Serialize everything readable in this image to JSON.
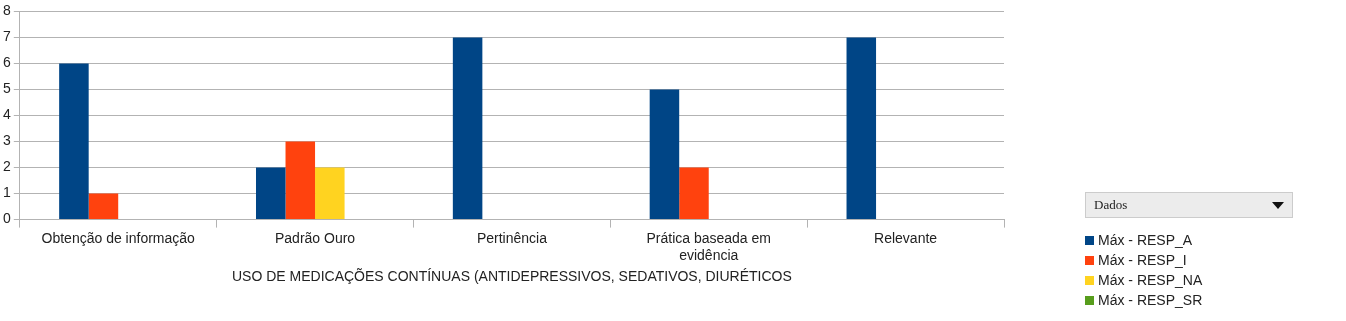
{
  "chart_data": {
    "type": "bar",
    "xlabel": "USO DE MEDICAÇÕES CONTÍNUAS (ANTIDEPRESSIVOS, SEDATIVOS, DIURÉTICOS",
    "legend_title": "Dados",
    "categories": [
      "Obtenção de informação",
      "Padrão Ouro",
      "Pertinência",
      "Prática baseada em evidência",
      "Relevante"
    ],
    "series": [
      {
        "name": "Máx - RESP_A",
        "color": "#004586",
        "values": [
          6,
          2,
          7,
          5,
          7
        ]
      },
      {
        "name": "Máx - RESP_I",
        "color": "#ff420e",
        "values": [
          1,
          3,
          null,
          2,
          null
        ]
      },
      {
        "name": "Máx - RESP_NA",
        "color": "#ffd320",
        "values": [
          null,
          2,
          null,
          null,
          null
        ]
      },
      {
        "name": "Máx - RESP_SR",
        "color": "#579d1c",
        "values": [
          null,
          null,
          null,
          null,
          null
        ]
      }
    ],
    "ylim": [
      0,
      8
    ],
    "yticks": [
      0,
      1,
      2,
      3,
      4,
      5,
      6,
      7,
      8
    ],
    "grid": "y",
    "legend": "bottom right"
  }
}
